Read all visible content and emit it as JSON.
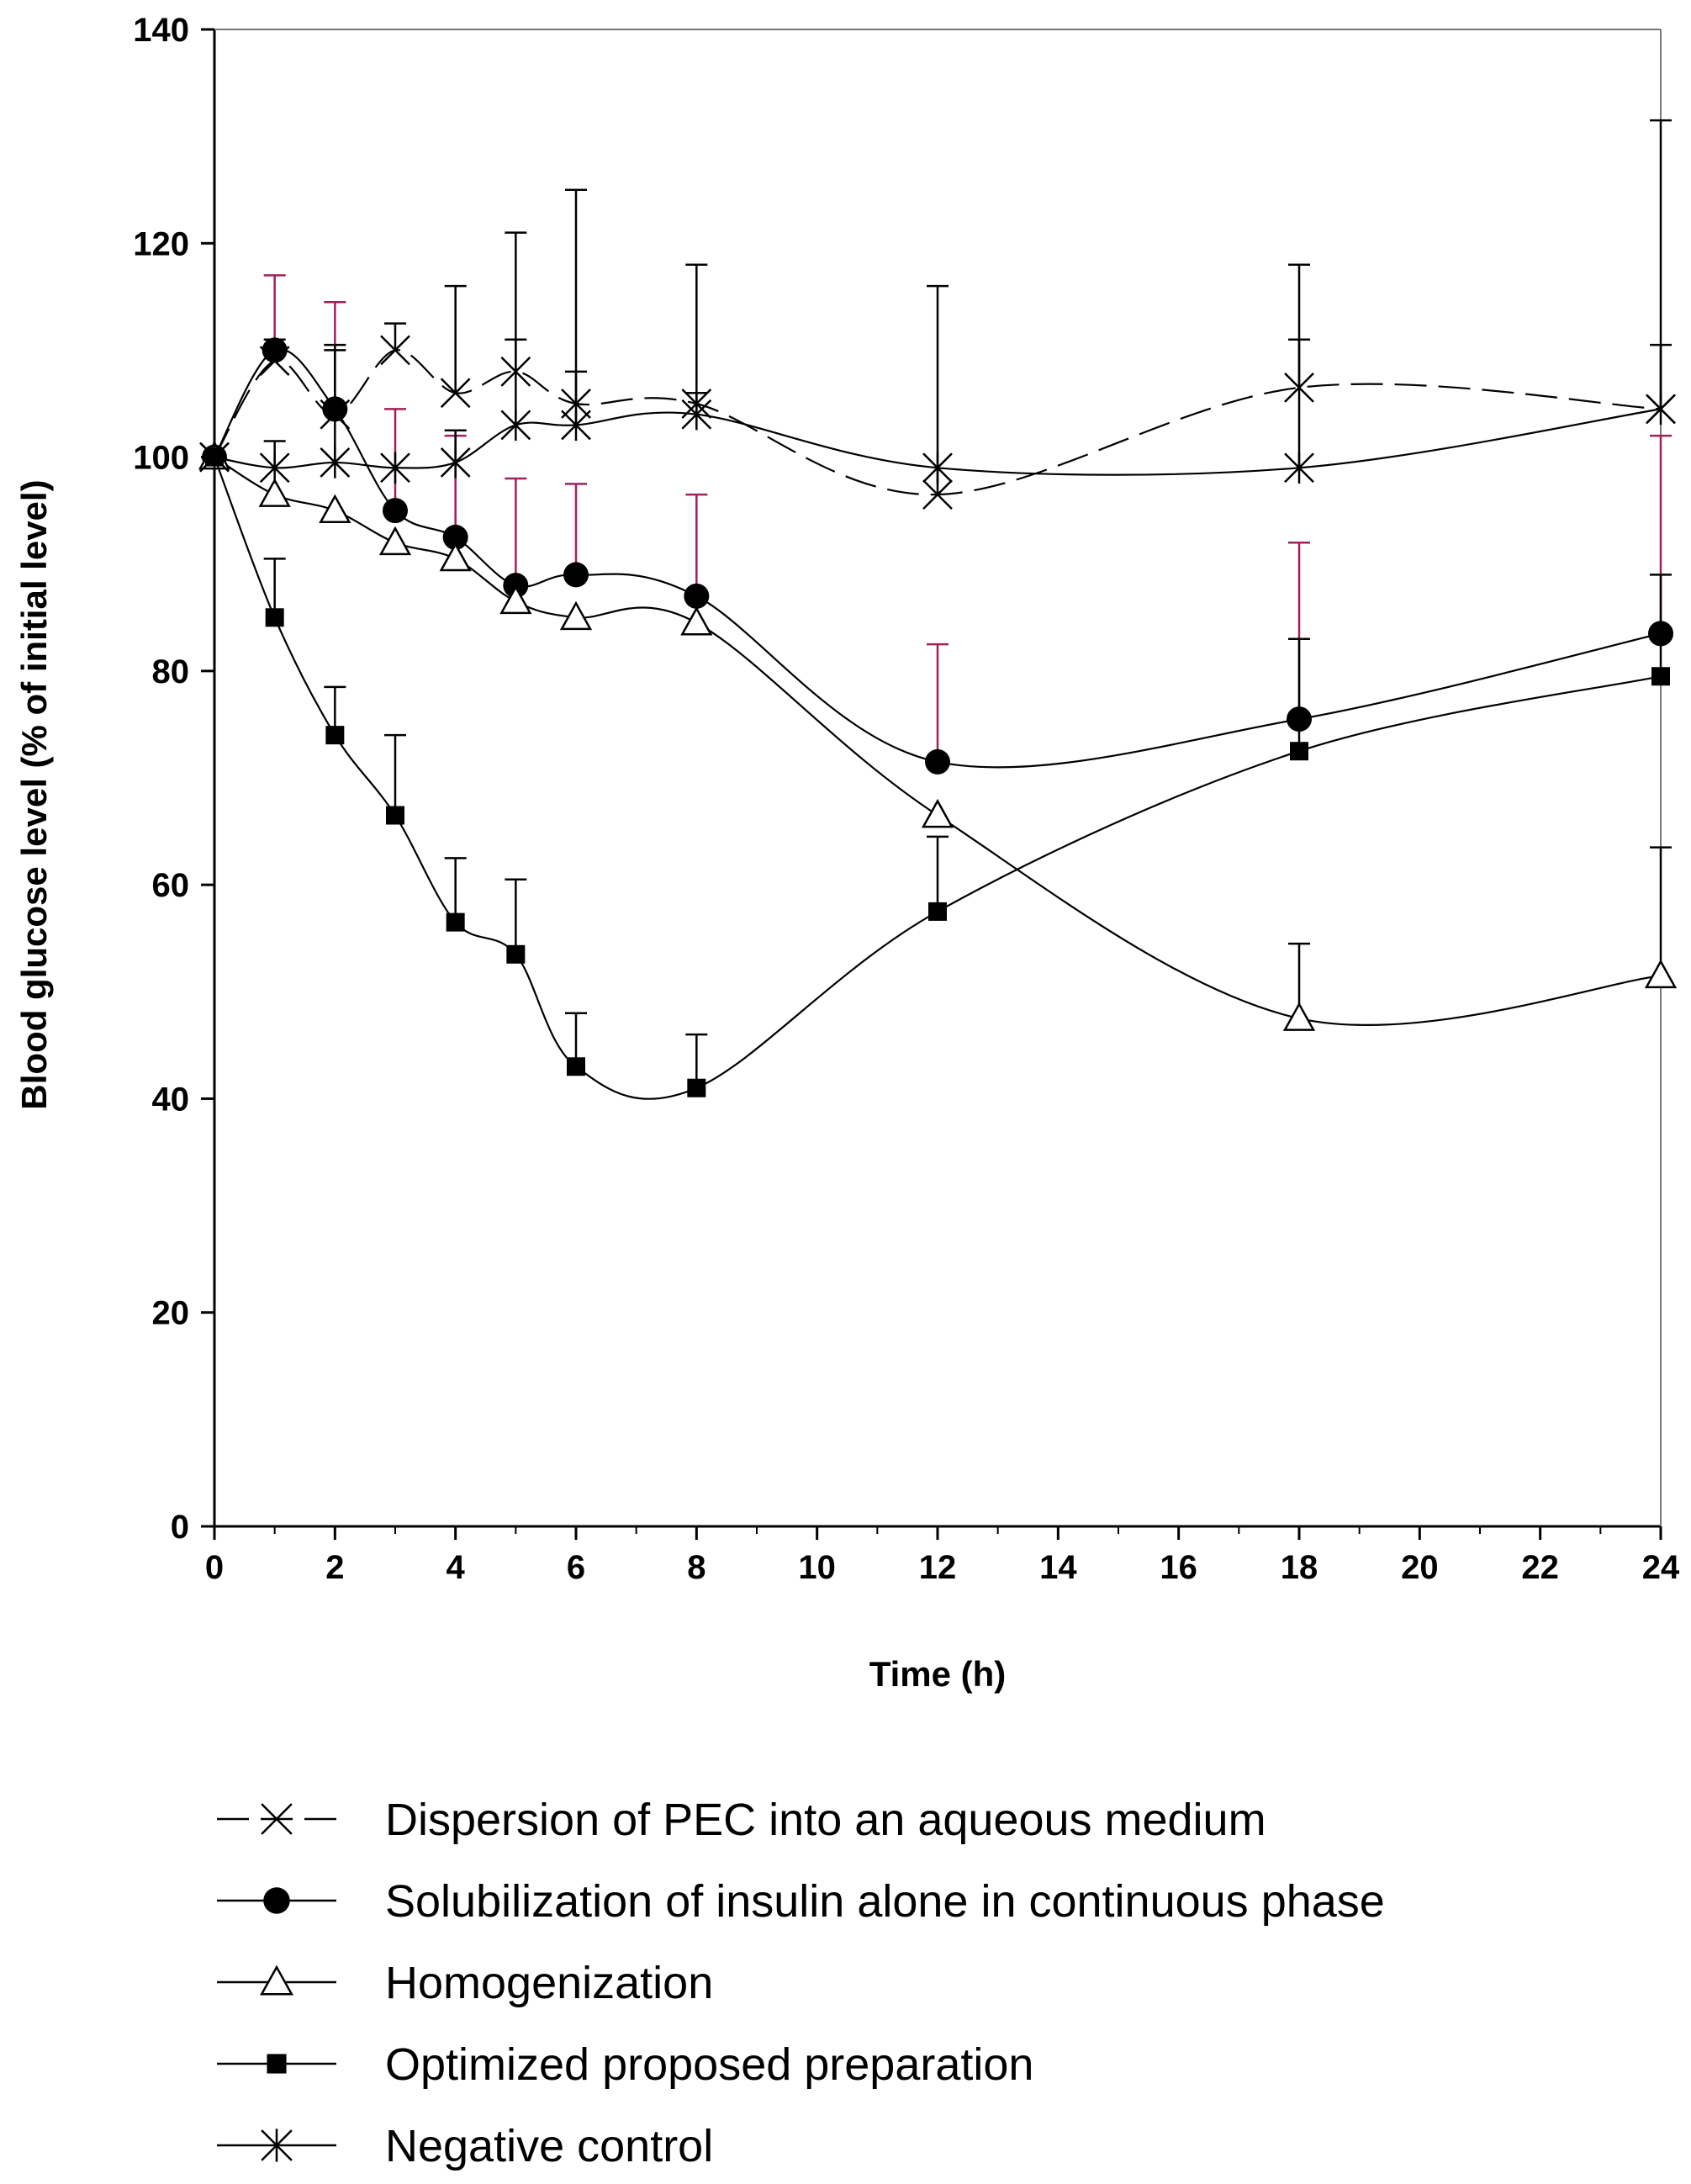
{
  "chart_data": {
    "type": "line",
    "title": "",
    "xlabel": "Time (h)",
    "ylabel": "Blood glucose level (%  of initial level)",
    "xlim": [
      0,
      24
    ],
    "ylim": [
      0,
      140
    ],
    "xticks": [
      0,
      2,
      4,
      6,
      8,
      10,
      12,
      14,
      16,
      18,
      20,
      22,
      24
    ],
    "yticks": [
      0,
      20,
      40,
      60,
      80,
      100,
      120,
      140
    ],
    "grid": false,
    "legend_position": "bottom",
    "series": [
      {
        "name": "Dispersion of PEC into an aqueous medium",
        "marker": "x",
        "line_style": "dashed",
        "error_color": "#000000",
        "x": [
          0,
          1,
          2,
          3,
          4,
          5,
          6,
          8,
          12,
          18,
          24
        ],
        "y": [
          100,
          109,
          104,
          110,
          106,
          108,
          105,
          105,
          96.5,
          106.5,
          104.5
        ],
        "error_up": [
          0,
          2,
          6,
          2.5,
          10,
          13,
          20,
          13,
          19.5,
          11.5,
          27
        ]
      },
      {
        "name": "Solubilization of insulin alone in continuous phase",
        "marker": "filled-circle",
        "line_style": "solid",
        "error_color": "#a0205a",
        "x": [
          0,
          1,
          2,
          3,
          4,
          5,
          6,
          8,
          12,
          18,
          24
        ],
        "y": [
          100,
          110,
          104.5,
          95,
          92.5,
          88,
          89,
          87,
          71.5,
          75.5,
          83.5
        ],
        "error_up": [
          0,
          7,
          10,
          9.5,
          9.5,
          10,
          8.5,
          9.5,
          11,
          16.5,
          18.5
        ]
      },
      {
        "name": "Homogenization",
        "marker": "open-triangle",
        "line_style": "solid",
        "error_color": "#000000",
        "x": [
          0,
          1,
          2,
          3,
          4,
          5,
          6,
          8,
          12,
          18,
          24
        ],
        "y": [
          100,
          96.5,
          95,
          92,
          90.5,
          86.5,
          85,
          84.5,
          66.5,
          47.5,
          51.5
        ],
        "error_up": [
          0,
          0,
          0,
          0,
          0,
          0,
          0,
          0,
          0,
          7,
          12
        ]
      },
      {
        "name": "Optimized proposed preparation",
        "marker": "filled-square",
        "line_style": "solid",
        "error_color": "#000000",
        "x": [
          0,
          1,
          2,
          3,
          4,
          5,
          6,
          8,
          12,
          18,
          24
        ],
        "y": [
          100,
          85,
          74,
          66.5,
          56.5,
          53.5,
          43,
          41,
          57.5,
          72.5,
          79.5
        ],
        "error_up": [
          0,
          5.5,
          4.5,
          7.5,
          6,
          7,
          5,
          5,
          7,
          10.5,
          9.5
        ]
      },
      {
        "name": "Negative control",
        "marker": "asterisk",
        "line_style": "solid",
        "error_color": "#000000",
        "x": [
          0,
          1,
          2,
          3,
          4,
          5,
          6,
          8,
          12,
          18,
          24
        ],
        "y": [
          100,
          99,
          99.5,
          99,
          99.5,
          103,
          103,
          104,
          99,
          99,
          104.5
        ],
        "error_up": [
          0,
          2.5,
          11,
          0,
          3,
          8,
          5,
          2,
          0,
          12,
          6
        ]
      }
    ]
  }
}
